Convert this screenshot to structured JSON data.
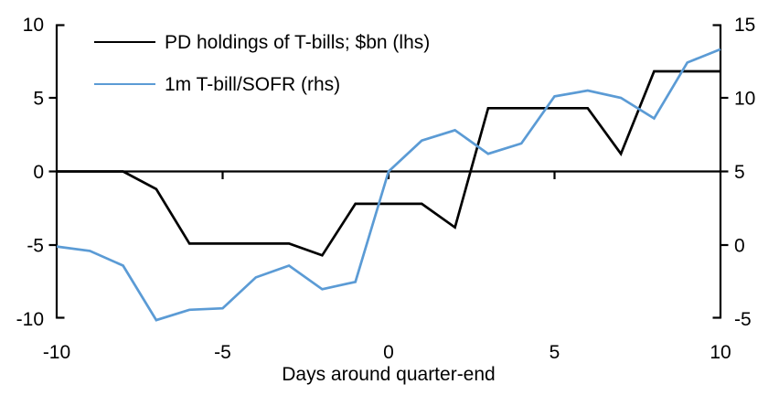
{
  "chart_data": {
    "type": "line",
    "title": "",
    "xlabel": "Days around quarter-end",
    "x": [
      -10,
      -9,
      -8,
      -7,
      -6,
      -5,
      -4,
      -3,
      -2,
      -1,
      0,
      1,
      2,
      3,
      4,
      5,
      6,
      7,
      8,
      9,
      10
    ],
    "series": [
      {
        "name": "PD holdings of T-bills; $bn (lhs)",
        "axis": "left",
        "color": "#000000",
        "values": [
          0,
          0,
          0,
          -1.2,
          -4.9,
          -4.9,
          -4.9,
          -4.9,
          -5.7,
          -2.2,
          -2.2,
          -2.2,
          -3.8,
          4.3,
          4.3,
          4.3,
          4.3,
          1.2,
          6.8,
          6.8,
          6.8
        ]
      },
      {
        "name": "1m T-bill/SOFR (rhs)",
        "axis": "right",
        "color": "#5B9BD5",
        "values": [
          -0.1,
          -0.4,
          -1.4,
          -5.1,
          -4.4,
          -4.3,
          -2.2,
          -1.4,
          -3.0,
          -2.5,
          5.0,
          7.1,
          7.8,
          6.2,
          6.9,
          10.1,
          10.5,
          10.0,
          8.6,
          12.4,
          13.3
        ]
      }
    ],
    "left_axis": {
      "range": [
        -10,
        10
      ],
      "ticks": [
        10,
        5,
        0,
        -5,
        -10
      ]
    },
    "right_axis": {
      "range": [
        -5,
        15
      ],
      "ticks": [
        15,
        10,
        5,
        0,
        -5
      ]
    },
    "x_ticks": [
      -10,
      -5,
      0,
      5,
      10
    ],
    "grid": false,
    "zero_line": true,
    "legend_position": "top-left",
    "axis_color": "#000000",
    "background_color": "#ffffff"
  }
}
